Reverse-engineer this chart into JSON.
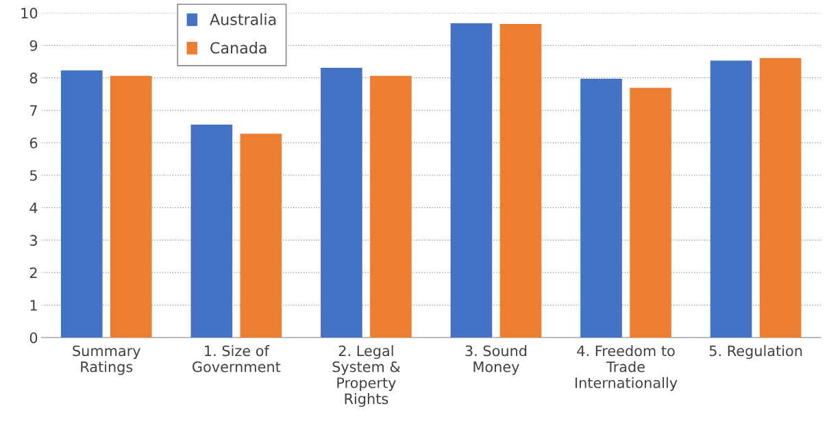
{
  "chart_data": {
    "type": "bar",
    "categories": [
      "Summary\nRatings",
      "1. Size of\nGovernment",
      "2. Legal\nSystem &\nProperty\nRights",
      "3. Sound\nMoney",
      "4. Freedom to\nTrade\nInternationally",
      "5. Regulation"
    ],
    "series": [
      {
        "name": "Australia",
        "color": "#4472c4",
        "values": [
          8.23,
          6.56,
          8.31,
          9.68,
          7.97,
          8.53
        ]
      },
      {
        "name": "Canada",
        "color": "#ed7d31",
        "values": [
          8.06,
          6.28,
          8.06,
          9.66,
          7.69,
          8.61
        ]
      }
    ],
    "ylim": [
      0,
      10
    ],
    "yticks": [
      0,
      1,
      2,
      3,
      4,
      5,
      6,
      7,
      8,
      9,
      10
    ],
    "grid": "y",
    "legend": "top left"
  }
}
